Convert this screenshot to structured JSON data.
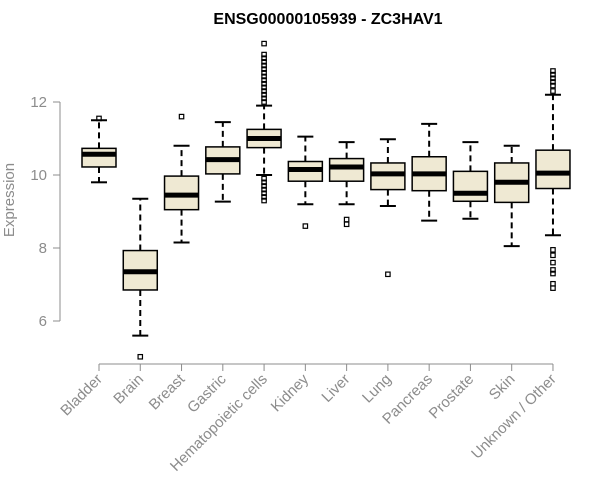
{
  "chart_data": {
    "type": "boxplot",
    "title": "ENSG00000105939 - ZC3HAV1",
    "xlabel": "",
    "ylabel": "Expression",
    "ylim": [
      4.9,
      13.6
    ],
    "yticks": [
      6,
      8,
      10,
      12
    ],
    "box_fill": "#efe9d3",
    "line_color": "#000000",
    "label_color": "#8c8c8c",
    "categories": [
      "Bladder",
      "Brain",
      "Breast",
      "Gastric",
      "Hematopoietic cells",
      "Kidney",
      "Liver",
      "Lung",
      "Pancreas",
      "Prostate",
      "Skin",
      "Unknown / Other"
    ],
    "boxes": [
      {
        "name": "Bladder",
        "min": 9.8,
        "q1": 10.22,
        "median": 10.57,
        "q3": 10.73,
        "max": 11.5,
        "outliers": [
          11.55
        ]
      },
      {
        "name": "Brain",
        "min": 5.6,
        "q1": 6.85,
        "median": 7.35,
        "q3": 7.93,
        "max": 9.35,
        "outliers": [
          5.02
        ]
      },
      {
        "name": "Breast",
        "min": 8.15,
        "q1": 9.05,
        "median": 9.45,
        "q3": 9.97,
        "max": 10.8,
        "outliers": [
          11.6
        ]
      },
      {
        "name": "Gastric",
        "min": 9.27,
        "q1": 10.03,
        "median": 10.42,
        "q3": 10.77,
        "max": 11.45,
        "outliers": []
      },
      {
        "name": "Hematopoietic cells",
        "min": 10.0,
        "q1": 10.75,
        "median": 11.0,
        "q3": 11.25,
        "max": 11.9,
        "outliers": [
          9.3,
          9.4,
          9.5,
          9.6,
          9.7,
          9.8,
          9.9,
          12.0,
          12.1,
          12.2,
          12.3,
          12.4,
          12.5,
          12.6,
          12.7,
          12.8,
          12.9,
          13.0,
          13.1,
          13.2,
          13.3,
          13.6
        ]
      },
      {
        "name": "Kidney",
        "min": 9.2,
        "q1": 9.83,
        "median": 10.15,
        "q3": 10.37,
        "max": 11.05,
        "outliers": [
          8.6
        ]
      },
      {
        "name": "Liver",
        "min": 9.2,
        "q1": 9.83,
        "median": 10.22,
        "q3": 10.45,
        "max": 10.9,
        "outliers": [
          8.65,
          8.78
        ]
      },
      {
        "name": "Lung",
        "min": 9.15,
        "q1": 9.6,
        "median": 10.03,
        "q3": 10.33,
        "max": 10.98,
        "outliers": [
          7.28
        ]
      },
      {
        "name": "Pancreas",
        "min": 8.75,
        "q1": 9.57,
        "median": 10.03,
        "q3": 10.5,
        "max": 11.4,
        "outliers": []
      },
      {
        "name": "Prostate",
        "min": 8.8,
        "q1": 9.28,
        "median": 9.5,
        "q3": 10.1,
        "max": 10.9,
        "outliers": []
      },
      {
        "name": "Skin",
        "min": 8.05,
        "q1": 9.25,
        "median": 9.8,
        "q3": 10.33,
        "max": 10.8,
        "outliers": []
      },
      {
        "name": "Unknown / Other",
        "min": 8.35,
        "q1": 9.63,
        "median": 10.05,
        "q3": 10.68,
        "max": 12.2,
        "outliers": [
          6.9,
          7.02,
          7.3,
          7.4,
          7.6,
          7.8,
          7.95,
          12.3,
          12.45,
          12.55,
          12.65,
          12.75,
          12.85
        ]
      }
    ]
  }
}
